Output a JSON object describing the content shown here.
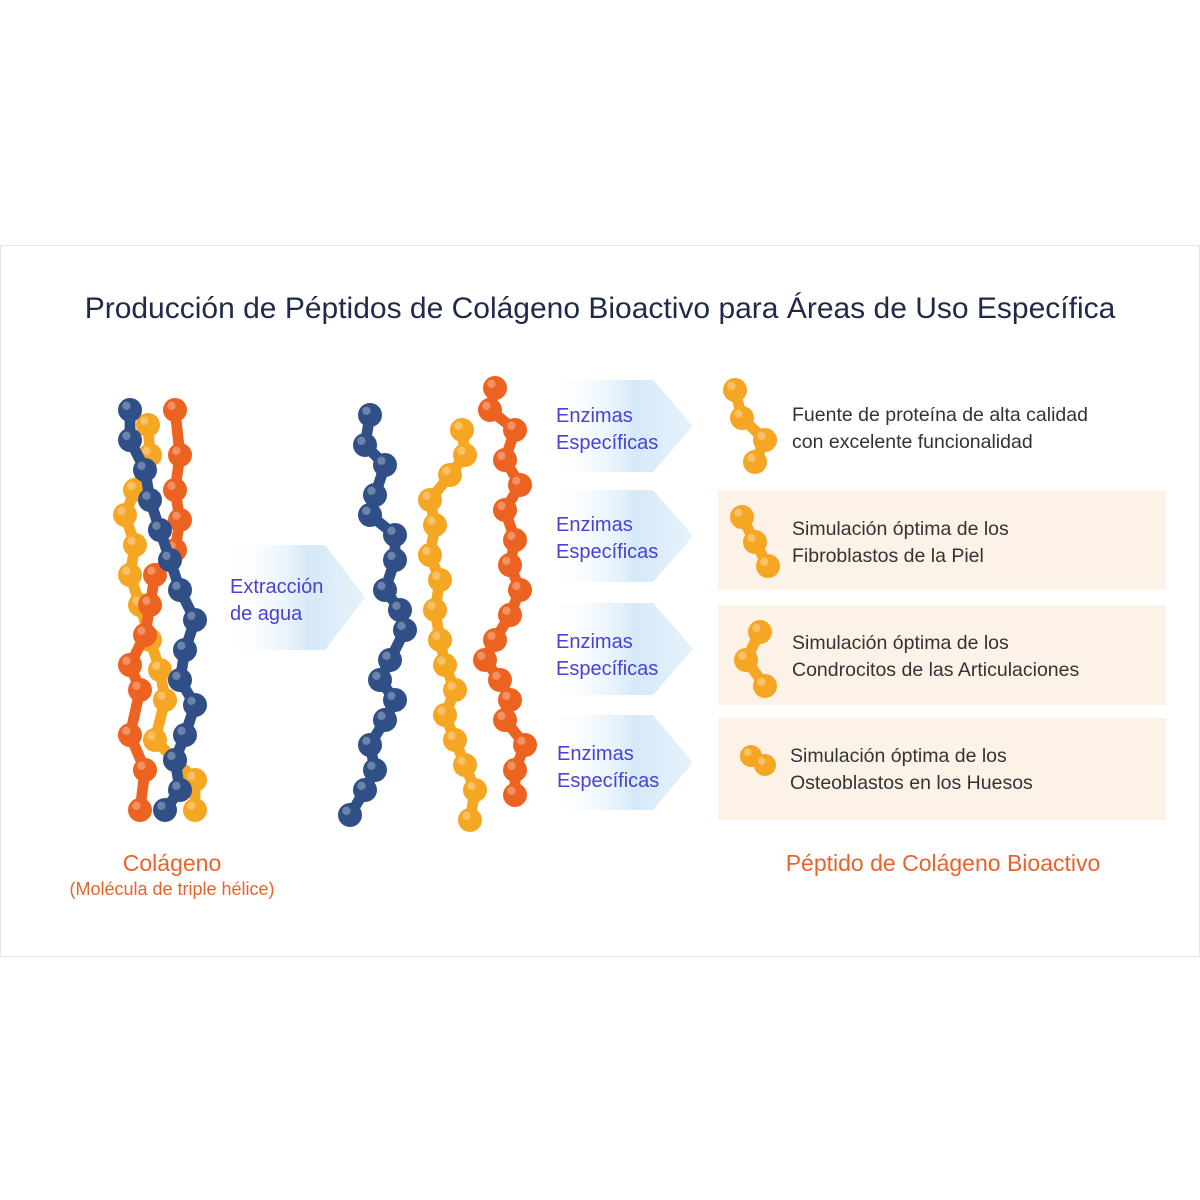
{
  "title": "Producción de Péptidos de Colágeno Bioactivo para Áreas de Uso Específica",
  "colors": {
    "blue_chain": "#2f4f86",
    "orange_chain": "#ec6220",
    "yellow_chain": "#f5a623",
    "label_text": "#4a3fd6",
    "caption": "#e8632b",
    "card_bg": "#fdf2e8",
    "arrow": "#dcecf8"
  },
  "extraction": {
    "line1": "Extracción",
    "line2": "de agua"
  },
  "rows": [
    {
      "enzyme1": "Enzimas",
      "enzyme2": "Específicas",
      "desc1": "Fuente de proteína de alta calidad",
      "desc2": "con excelente funcionalidad"
    },
    {
      "enzyme1": "Enzimas",
      "enzyme2": "Específicas",
      "desc1": "Simulación óptima de los",
      "desc2": "Fibroblastos de la Piel"
    },
    {
      "enzyme1": "Enzimas",
      "enzyme2": "Específicas",
      "desc1": "Simulación óptima de los",
      "desc2": "Condrocitos de las Articulaciones"
    },
    {
      "enzyme1": "Enzimas",
      "enzyme2": "Específicas",
      "desc1": "Simulación óptima de los",
      "desc2": "Osteoblastos en los Huesos"
    }
  ],
  "collagen": {
    "title": "Colágeno",
    "subtitle": "(Molécula de triple hélice)"
  },
  "peptide": {
    "title": "Péptido de Colágeno Bioactivo"
  }
}
